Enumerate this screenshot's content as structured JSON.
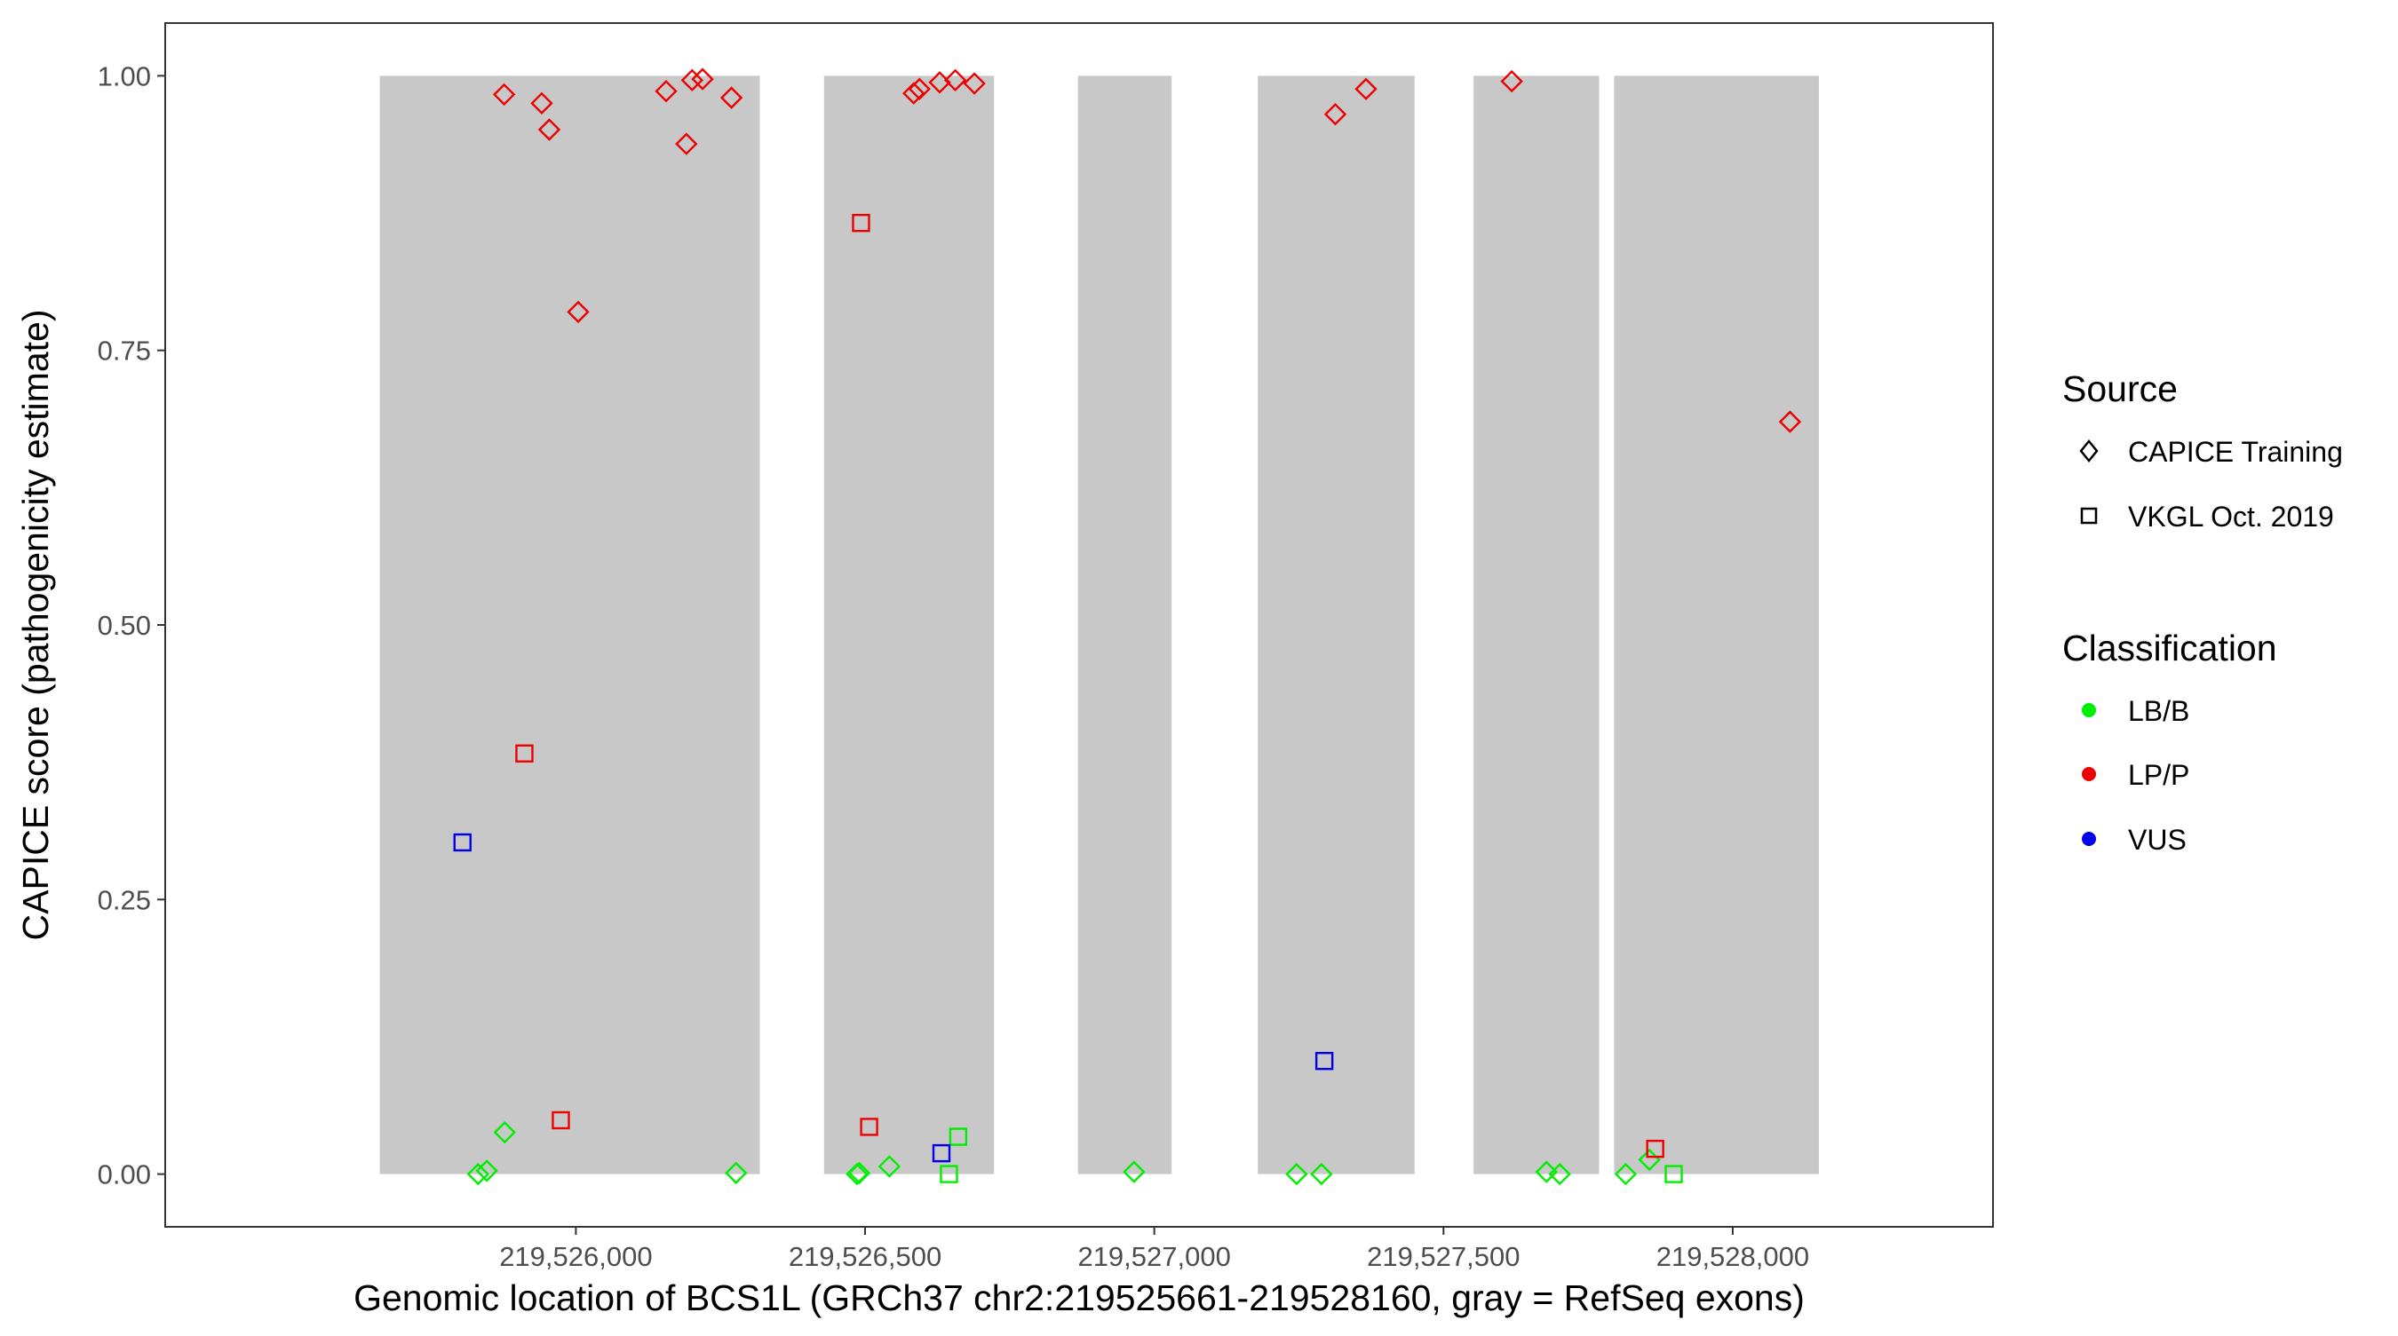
{
  "chart_data": {
    "type": "scatter",
    "title": "",
    "xlabel": "Genomic location of BCS1L (GRCh37 chr2:219525661-219528160, gray = RefSeq exons)",
    "ylabel": "CAPICE score (pathogenicity estimate)",
    "xlim": [
      219525290,
      219528450
    ],
    "ylim": [
      -0.048,
      1.048
    ],
    "x_ticks": [
      219526000,
      219526500,
      219527000,
      219527500,
      219528000
    ],
    "x_tick_labels": [
      "219,526,000",
      "219,526,500",
      "219,527,000",
      "219,527,500",
      "219,528,000"
    ],
    "y_ticks": [
      0,
      0.25,
      0.5,
      0.75,
      1.0
    ],
    "y_tick_labels": [
      "0.00",
      "0.25",
      "0.50",
      "0.75",
      "1.00"
    ],
    "grid": false,
    "legend_position": "right",
    "exon_color": "#c8c8c8",
    "exons": [
      {
        "start": 219525661,
        "end": 219526318
      },
      {
        "start": 219526429,
        "end": 219526723
      },
      {
        "start": 219526868,
        "end": 219527030
      },
      {
        "start": 219527179,
        "end": 219527450
      },
      {
        "start": 219527552,
        "end": 219527769
      },
      {
        "start": 219527795,
        "end": 219528149
      }
    ],
    "legends": {
      "source": {
        "title": "Source",
        "items": [
          {
            "label": "CAPICE Training",
            "shape": "diamond"
          },
          {
            "label": "VKGL Oct. 2019",
            "shape": "square"
          }
        ]
      },
      "classification": {
        "title": "Classification",
        "items": [
          {
            "label": "LB/B",
            "color": "#00ee00"
          },
          {
            "label": "LP/P",
            "color": "#ee0000"
          },
          {
            "label": "VUS",
            "color": "#0000ee"
          }
        ]
      }
    },
    "series": [
      {
        "source": "CAPICE Training",
        "classification": "LP/P",
        "shape": "diamond",
        "color": "#ee0000",
        "points": [
          [
            219525876,
            0.983
          ],
          [
            219525941,
            0.975
          ],
          [
            219525954,
            0.951
          ],
          [
            219526004,
            0.785
          ],
          [
            219526156,
            0.986
          ],
          [
            219526191,
            0.938
          ],
          [
            219526201,
            0.996
          ],
          [
            219526219,
            0.997
          ],
          [
            219526269,
            0.98
          ],
          [
            219526584,
            0.984
          ],
          [
            219526594,
            0.988
          ],
          [
            219526629,
            0.994
          ],
          [
            219526656,
            0.996
          ],
          [
            219526689,
            0.993
          ],
          [
            219527313,
            0.965
          ],
          [
            219527366,
            0.988
          ],
          [
            219527618,
            0.995
          ],
          [
            219528099,
            0.685
          ]
        ]
      },
      {
        "source": "CAPICE Training",
        "classification": "LB/B",
        "shape": "diamond",
        "color": "#00ee00",
        "points": [
          [
            219525831,
            0.0
          ],
          [
            219525846,
            0.003
          ],
          [
            219525877,
            0.038
          ],
          [
            219526277,
            0.001
          ],
          [
            219526486,
            0.0
          ],
          [
            219526490,
            0.001
          ],
          [
            219526542,
            0.007
          ],
          [
            219526965,
            0.002
          ],
          [
            219527246,
            0.0
          ],
          [
            219527289,
            0.0
          ],
          [
            219527678,
            0.002
          ],
          [
            219527701,
            0.0
          ],
          [
            219527815,
            0.0
          ],
          [
            219527856,
            0.013
          ]
        ]
      },
      {
        "source": "VKGL Oct. 2019",
        "classification": "LP/P",
        "shape": "square",
        "color": "#ee0000",
        "points": [
          [
            219525911,
            0.383
          ],
          [
            219525974,
            0.049
          ],
          [
            219526493,
            0.866
          ],
          [
            219526507,
            0.043
          ],
          [
            219527866,
            0.023
          ]
        ]
      },
      {
        "source": "VKGL Oct. 2019",
        "classification": "LB/B",
        "shape": "square",
        "color": "#00ee00",
        "points": [
          [
            219526645,
            0.0
          ],
          [
            219526661,
            0.034
          ],
          [
            219527898,
            0.0
          ]
        ]
      },
      {
        "source": "VKGL Oct. 2019",
        "classification": "VUS",
        "shape": "square",
        "color": "#0000ee",
        "points": [
          [
            219525804,
            0.302
          ],
          [
            219526632,
            0.019
          ],
          [
            219527294,
            0.103
          ]
        ]
      }
    ]
  }
}
